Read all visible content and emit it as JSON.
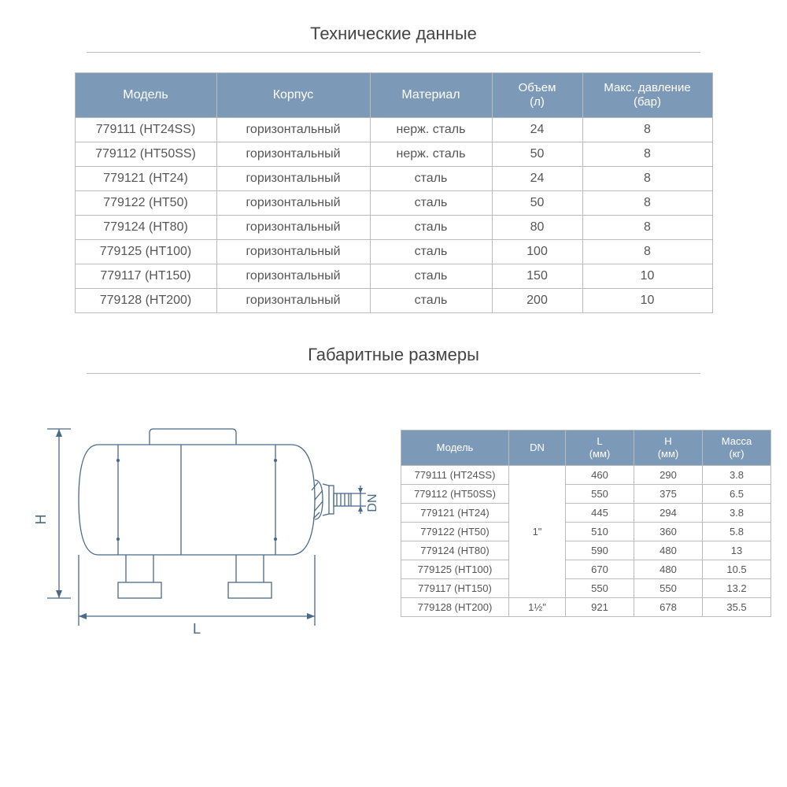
{
  "sections": {
    "tech_title": "Технические данные",
    "dims_title": "Габаритные размеры"
  },
  "table1": {
    "header_bg": "#7c9ab8",
    "header_fg": "#ffffff",
    "border_color": "#bbbbbb",
    "columns": [
      {
        "key": "model",
        "label": "Модель"
      },
      {
        "key": "body",
        "label": "Корпус"
      },
      {
        "key": "material",
        "label": "Материал"
      },
      {
        "key": "volume",
        "label_line1": "Объем",
        "label_line2": "(л)"
      },
      {
        "key": "pmax",
        "label_line1": "Макс. давление",
        "label_line2": "(бар)"
      }
    ],
    "rows": [
      {
        "model": "779111 (HT24SS)",
        "body": "горизонтальный",
        "material": "нерж. сталь",
        "volume": "24",
        "pmax": "8"
      },
      {
        "model": "779112 (HT50SS)",
        "body": "горизонтальный",
        "material": "нерж. сталь",
        "volume": "50",
        "pmax": "8"
      },
      {
        "model": "779121 (HT24)",
        "body": "горизонтальный",
        "material": "сталь",
        "volume": "24",
        "pmax": "8"
      },
      {
        "model": "779122 (HT50)",
        "body": "горизонтальный",
        "material": "сталь",
        "volume": "50",
        "pmax": "8"
      },
      {
        "model": "779124 (HT80)",
        "body": "горизонтальный",
        "material": "сталь",
        "volume": "80",
        "pmax": "8"
      },
      {
        "model": "779125 (HT100)",
        "body": "горизонтальный",
        "material": "сталь",
        "volume": "100",
        "pmax": "8"
      },
      {
        "model": "779117 (HT150)",
        "body": "горизонтальный",
        "material": "сталь",
        "volume": "150",
        "pmax": "10"
      },
      {
        "model": "779128 (HT200)",
        "body": "горизонтальный",
        "material": "сталь",
        "volume": "200",
        "pmax": "10"
      }
    ]
  },
  "diagram": {
    "line_color": "#4a6a8a",
    "fill": "#ffffff",
    "label_L": "L",
    "label_H": "H",
    "label_DN": "DN"
  },
  "table2": {
    "header_bg": "#7c9ab8",
    "header_fg": "#ffffff",
    "border_color": "#bbbbbb",
    "columns": [
      {
        "key": "model",
        "label": "Модель"
      },
      {
        "key": "dn",
        "label": "DN"
      },
      {
        "key": "l",
        "label_line1": "L",
        "label_line2": "(мм)"
      },
      {
        "key": "h",
        "label_line1": "H",
        "label_line2": "(мм)"
      },
      {
        "key": "mass",
        "label_line1": "Масса",
        "label_line2": "(кг)"
      }
    ],
    "dn_group1": "1\"",
    "dn_group2": "1½\"",
    "rows": [
      {
        "model": "779111 (HT24SS)",
        "l": "460",
        "h": "290",
        "mass": "3.8"
      },
      {
        "model": "779112 (HT50SS)",
        "l": "550",
        "h": "375",
        "mass": "6.5"
      },
      {
        "model": "779121 (HT24)",
        "l": "445",
        "h": "294",
        "mass": "3.8"
      },
      {
        "model": "779122 (HT50)",
        "l": "510",
        "h": "360",
        "mass": "5.8"
      },
      {
        "model": "779124 (HT80)",
        "l": "590",
        "h": "480",
        "mass": "13"
      },
      {
        "model": "779125 (HT100)",
        "l": "670",
        "h": "480",
        "mass": "10.5"
      },
      {
        "model": "779117 (HT150)",
        "l": "550",
        "h": "550",
        "mass": "13.2"
      },
      {
        "model": "779128 (HT200)",
        "l": "921",
        "h": "678",
        "mass": "35.5"
      }
    ]
  }
}
